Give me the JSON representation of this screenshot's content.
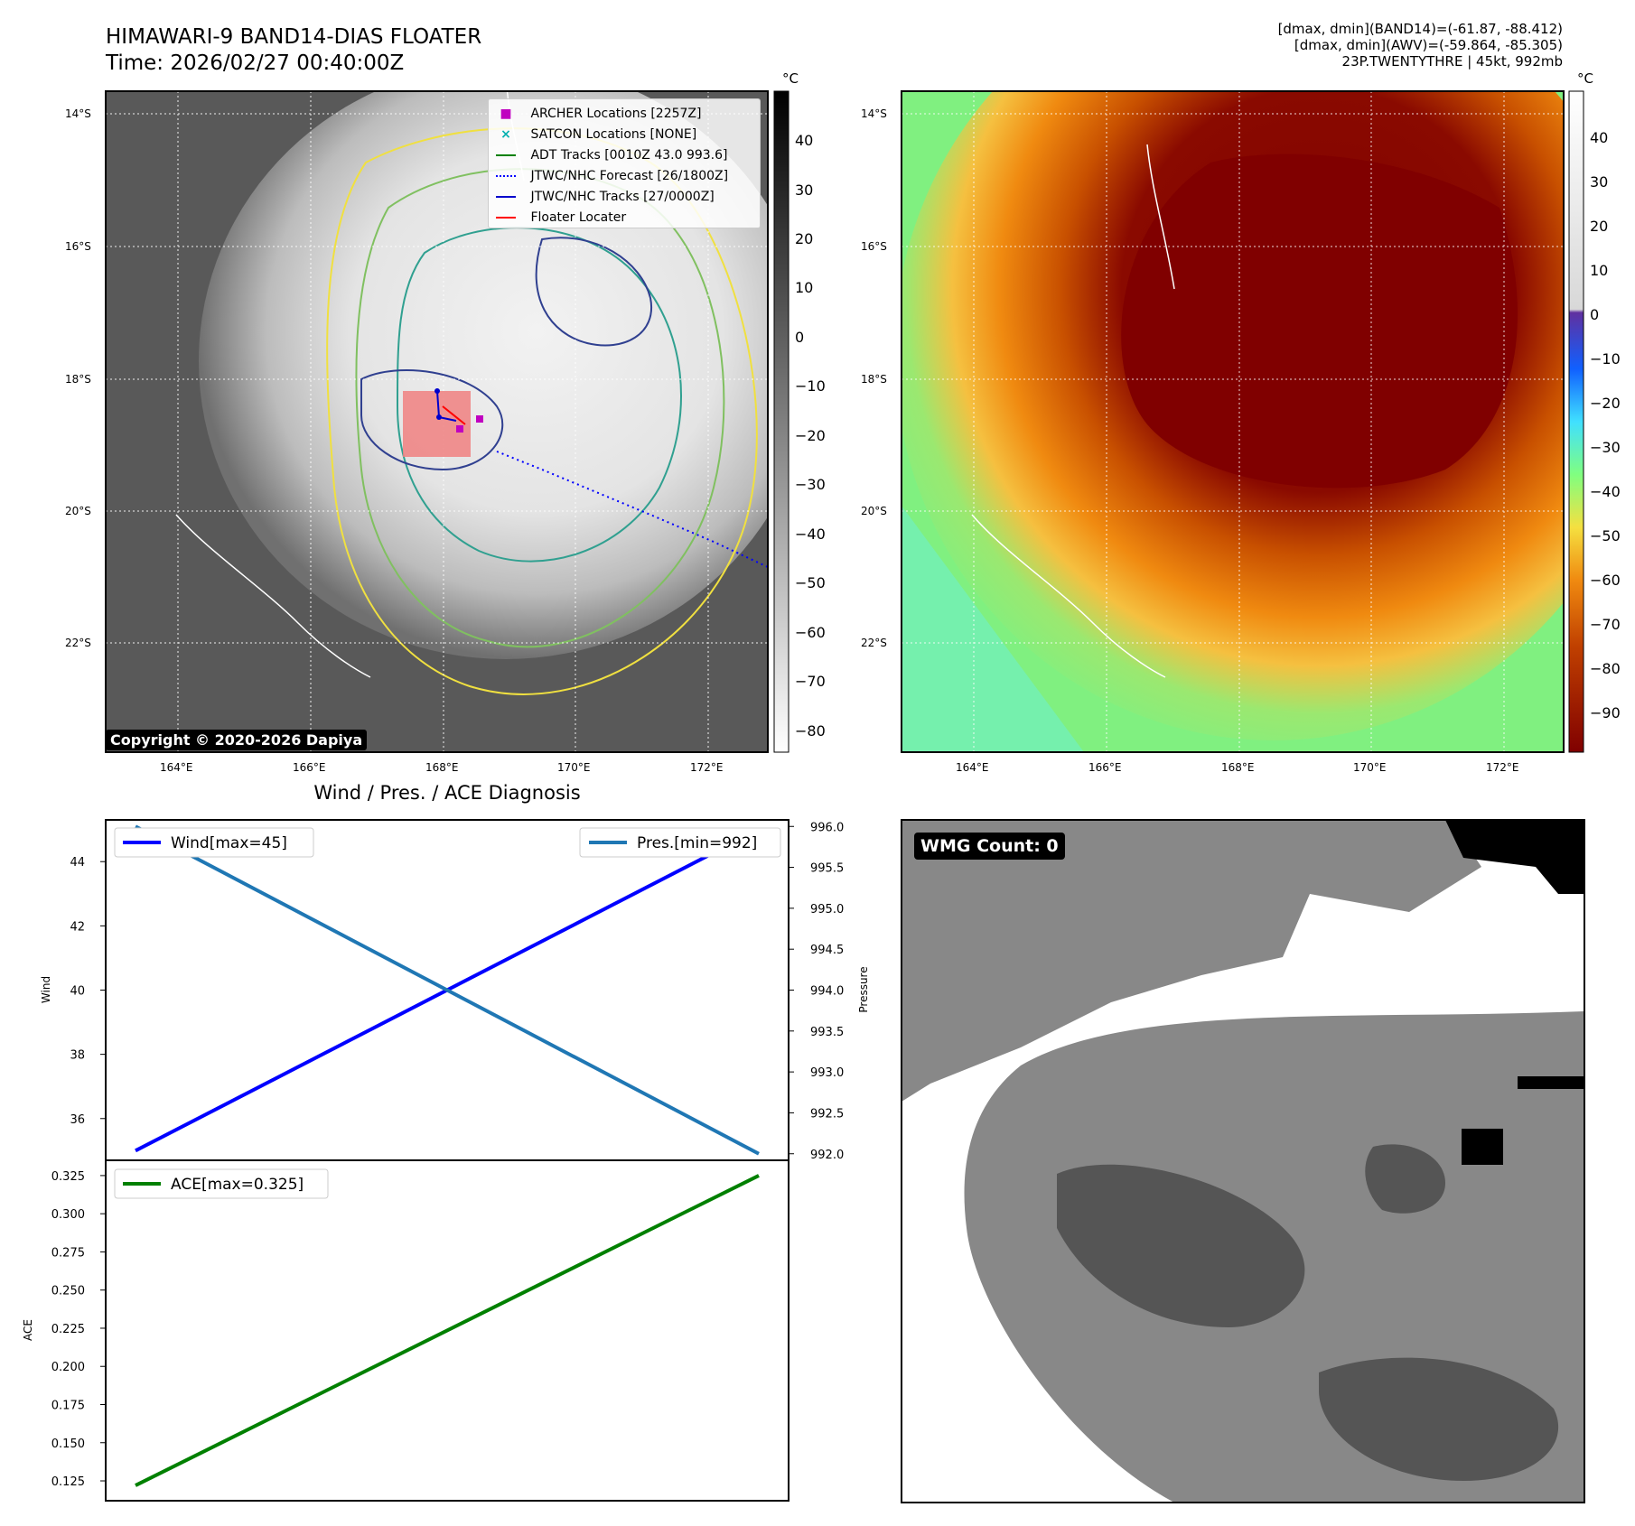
{
  "header": {
    "title_line1": "HIMAWARI-9 BAND14-DIAS FLOATER",
    "title_line2": "Time: 2026/02/27 00:40:00Z",
    "info_line1": "[dmax, dmin](BAND14)=(-61.87, -88.412)",
    "info_line2": "[dmax, dmin](AWV)=(-59.864, -85.305)",
    "info_line3": "23P.TWENTYTHRE | 45kt, 992mb"
  },
  "copyright": "Copyright © 2020-2026 Dapiya",
  "diagnosis_title": "Wind / Pres. / ACE Diagnosis",
  "wmg_label": "WMG Count: 0",
  "map": {
    "lat_ticks": [
      "14°S",
      "16°S",
      "18°S",
      "20°S",
      "22°S"
    ],
    "lon_ticks": [
      "164°E",
      "166°E",
      "168°E",
      "170°E",
      "172°E"
    ],
    "storm_box_color": "#f08080"
  },
  "legend": {
    "items": [
      {
        "label": "ARCHER Locations [2257Z]",
        "color": "#c000c0",
        "marker": "square"
      },
      {
        "label": "SATCON Locations [NONE]",
        "color": "#00b0b0",
        "marker": "x"
      },
      {
        "label": "ADT Tracks [0010Z 43.0 993.6]",
        "color": "#008000",
        "marker": "line"
      },
      {
        "label": "JTWC/NHC Forecast [26/1800Z]",
        "color": "#0000ff",
        "marker": "dotted"
      },
      {
        "label": "JTWC/NHC Tracks [27/0000Z]",
        "color": "#0000cc",
        "marker": "line-dot"
      },
      {
        "label": "Floater Locater",
        "color": "#ff0000",
        "marker": "line"
      }
    ]
  },
  "colorbar1": {
    "unit": "°C",
    "ticks": [
      "40",
      "30",
      "20",
      "10",
      "0",
      "−10",
      "−20",
      "−30",
      "−40",
      "−50",
      "−60",
      "−70",
      "−80"
    ]
  },
  "colorbar2": {
    "unit": "°C",
    "ticks": [
      "40",
      "30",
      "20",
      "10",
      "0",
      "−10",
      "−20",
      "−30",
      "−40",
      "−50",
      "−60",
      "−70",
      "−80",
      "−90"
    ],
    "colors": {
      "warm_top": "#ffffff",
      "cold_bottom": "#800000",
      "mid": "#80ff80",
      "violet": "#5030a0"
    }
  },
  "chart_data": [
    {
      "type": "line",
      "panel": "wind-pressure",
      "x": [
        0,
        1
      ],
      "series": [
        {
          "name": "Wind[max=45]",
          "values": [
            35,
            45
          ],
          "color": "#0000ff",
          "axis": "left"
        },
        {
          "name": "Pres.[min=992]",
          "values": [
            996,
            992
          ],
          "color": "#1f77b4",
          "axis": "right"
        }
      ],
      "ylabel": "Wind",
      "y2label": "Pressure",
      "ylim": [
        34.7,
        45.3
      ],
      "y2lim": [
        991.92,
        996.08
      ],
      "yticks": [
        "36",
        "38",
        "40",
        "42",
        "44"
      ],
      "y2ticks": [
        "992.0",
        "992.5",
        "993.0",
        "993.5",
        "994.0",
        "994.5",
        "995.0",
        "995.5",
        "996.0"
      ]
    },
    {
      "type": "line",
      "panel": "ace",
      "x": [
        0,
        1
      ],
      "series": [
        {
          "name": "ACE[max=0.325]",
          "values": [
            0.122,
            0.325
          ],
          "color": "#008000",
          "axis": "left"
        }
      ],
      "ylabel": "ACE",
      "ylim": [
        0.112,
        0.335
      ],
      "yticks": [
        "0.125",
        "0.150",
        "0.175",
        "0.200",
        "0.225",
        "0.250",
        "0.275",
        "0.300",
        "0.325"
      ]
    }
  ]
}
